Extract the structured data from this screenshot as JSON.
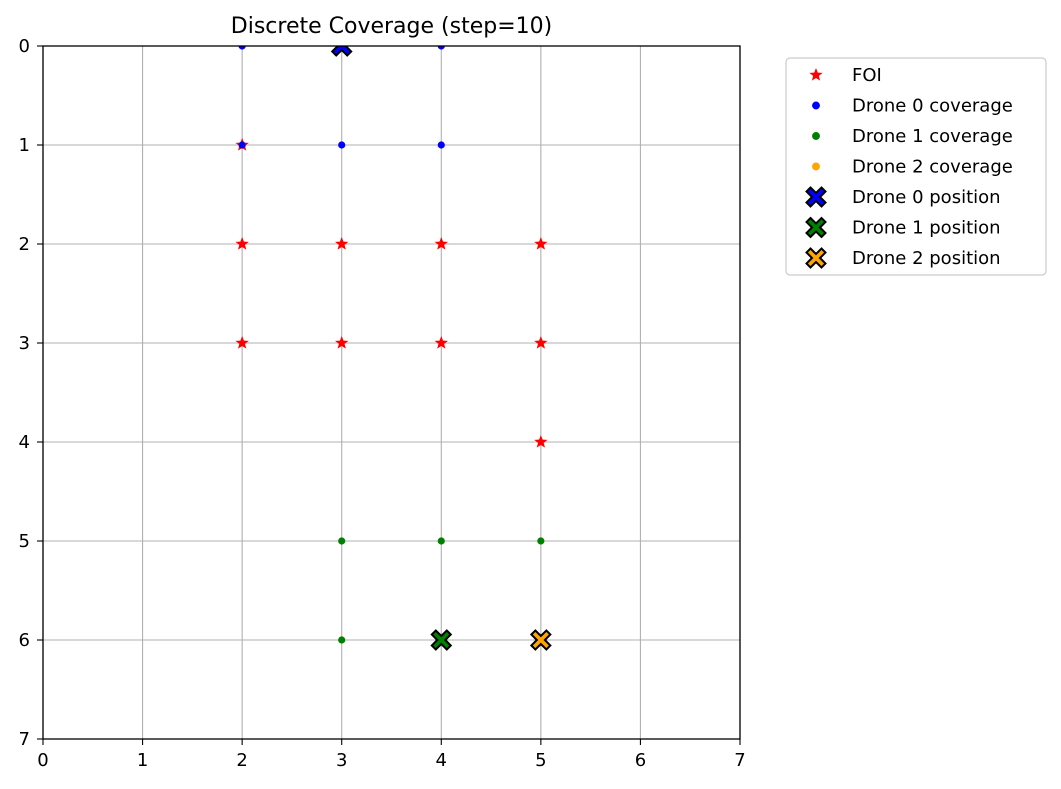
{
  "chart_data": {
    "type": "scatter",
    "title": "Discrete Coverage (step=10)",
    "xlabel": "",
    "ylabel": "",
    "xlim": [
      0,
      7
    ],
    "ylim": [
      7,
      0
    ],
    "y_inverted": true,
    "xticks": [
      "0",
      "1",
      "2",
      "3",
      "4",
      "5",
      "6",
      "7"
    ],
    "yticks": [
      "0",
      "1",
      "2",
      "3",
      "4",
      "5",
      "6",
      "7"
    ],
    "grid": true,
    "legend_position": "outside-upper-right",
    "series": [
      {
        "name": "FOI",
        "marker": "star",
        "color": "#ff0000",
        "points": [
          [
            2,
            1
          ],
          [
            2,
            2
          ],
          [
            3,
            2
          ],
          [
            4,
            2
          ],
          [
            5,
            2
          ],
          [
            2,
            3
          ],
          [
            3,
            3
          ],
          [
            4,
            3
          ],
          [
            5,
            3
          ],
          [
            5,
            4
          ]
        ]
      },
      {
        "name": "Drone 0 coverage",
        "marker": "dot",
        "color": "#0000ff",
        "points": [
          [
            2,
            0
          ],
          [
            4,
            0
          ],
          [
            2,
            1
          ],
          [
            3,
            1
          ],
          [
            4,
            1
          ]
        ]
      },
      {
        "name": "Drone 1 coverage",
        "marker": "dot",
        "color": "#008000",
        "points": [
          [
            3,
            5
          ],
          [
            4,
            5
          ],
          [
            5,
            5
          ],
          [
            3,
            6
          ]
        ]
      },
      {
        "name": "Drone 2 coverage",
        "marker": "dot",
        "color": "#ffa500",
        "points": []
      },
      {
        "name": "Drone 0 position",
        "marker": "x-filled",
        "color": "#0000ff",
        "points": [
          [
            3,
            0
          ]
        ]
      },
      {
        "name": "Drone 1 position",
        "marker": "x-filled",
        "color": "#008000",
        "points": [
          [
            4,
            6
          ]
        ]
      },
      {
        "name": "Drone 2 position",
        "marker": "x-filled",
        "color": "#ffa500",
        "points": [
          [
            5,
            6
          ]
        ]
      }
    ]
  }
}
